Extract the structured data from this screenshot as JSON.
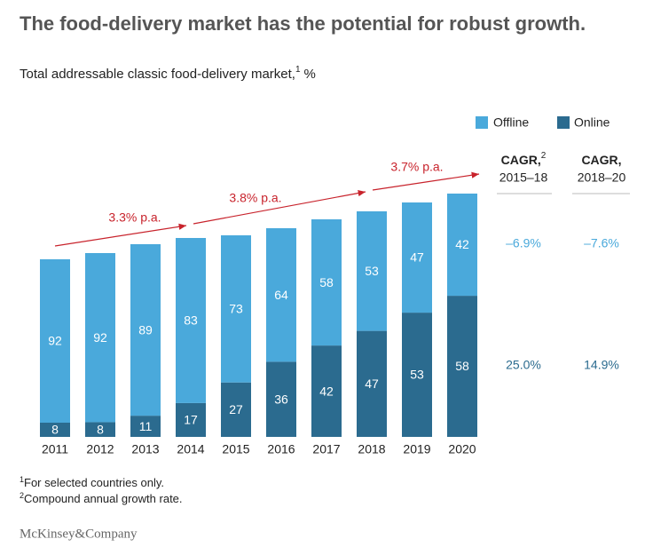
{
  "chart_data": {
    "type": "stacked_bar",
    "title": "The food-delivery market has the potential for robust growth.",
    "subtitle": {
      "text": "Total addressable classic food-delivery market,",
      "note": "1",
      "unit": "%"
    },
    "categories": [
      "2011",
      "2012",
      "2013",
      "2014",
      "2015",
      "2016",
      "2017",
      "2018",
      "2019",
      "2020"
    ],
    "series": [
      {
        "name": "Online",
        "color": "#2b6b8f",
        "values": [
          8,
          8,
          11,
          17,
          27,
          36,
          42,
          47,
          53,
          58
        ]
      },
      {
        "name": "Offline",
        "color": "#4aa9db",
        "values": [
          92,
          92,
          89,
          83,
          73,
          64,
          58,
          53,
          47,
          42
        ]
      }
    ],
    "market_size_index": [
      100,
      103.5,
      108.5,
      112,
      113.5,
      117.5,
      122.5,
      127,
      132,
      137
    ],
    "growth_annotations": [
      "3.3% p.a.",
      "3.8% p.a.",
      "3.7% p.a."
    ],
    "annotation_color": "#c8232c",
    "cagr": {
      "columns": [
        {
          "title": "CAGR,",
          "note": "2",
          "period": "2015–18"
        },
        {
          "title": "CAGR,",
          "period": "2018–20"
        }
      ],
      "rows": [
        {
          "values": [
            -6.9,
            -7.6
          ],
          "value_labels": [
            "–6.9%",
            "–7.6%"
          ]
        },
        {
          "values": [
            25.0,
            14.9
          ],
          "value_labels": [
            "25.0%",
            "14.9%"
          ]
        }
      ]
    },
    "footnotes": [
      {
        "marker": "1",
        "text": "For selected countries only."
      },
      {
        "marker": "2",
        "text": "Compound annual growth rate."
      }
    ],
    "source": "McKinsey&Company"
  }
}
